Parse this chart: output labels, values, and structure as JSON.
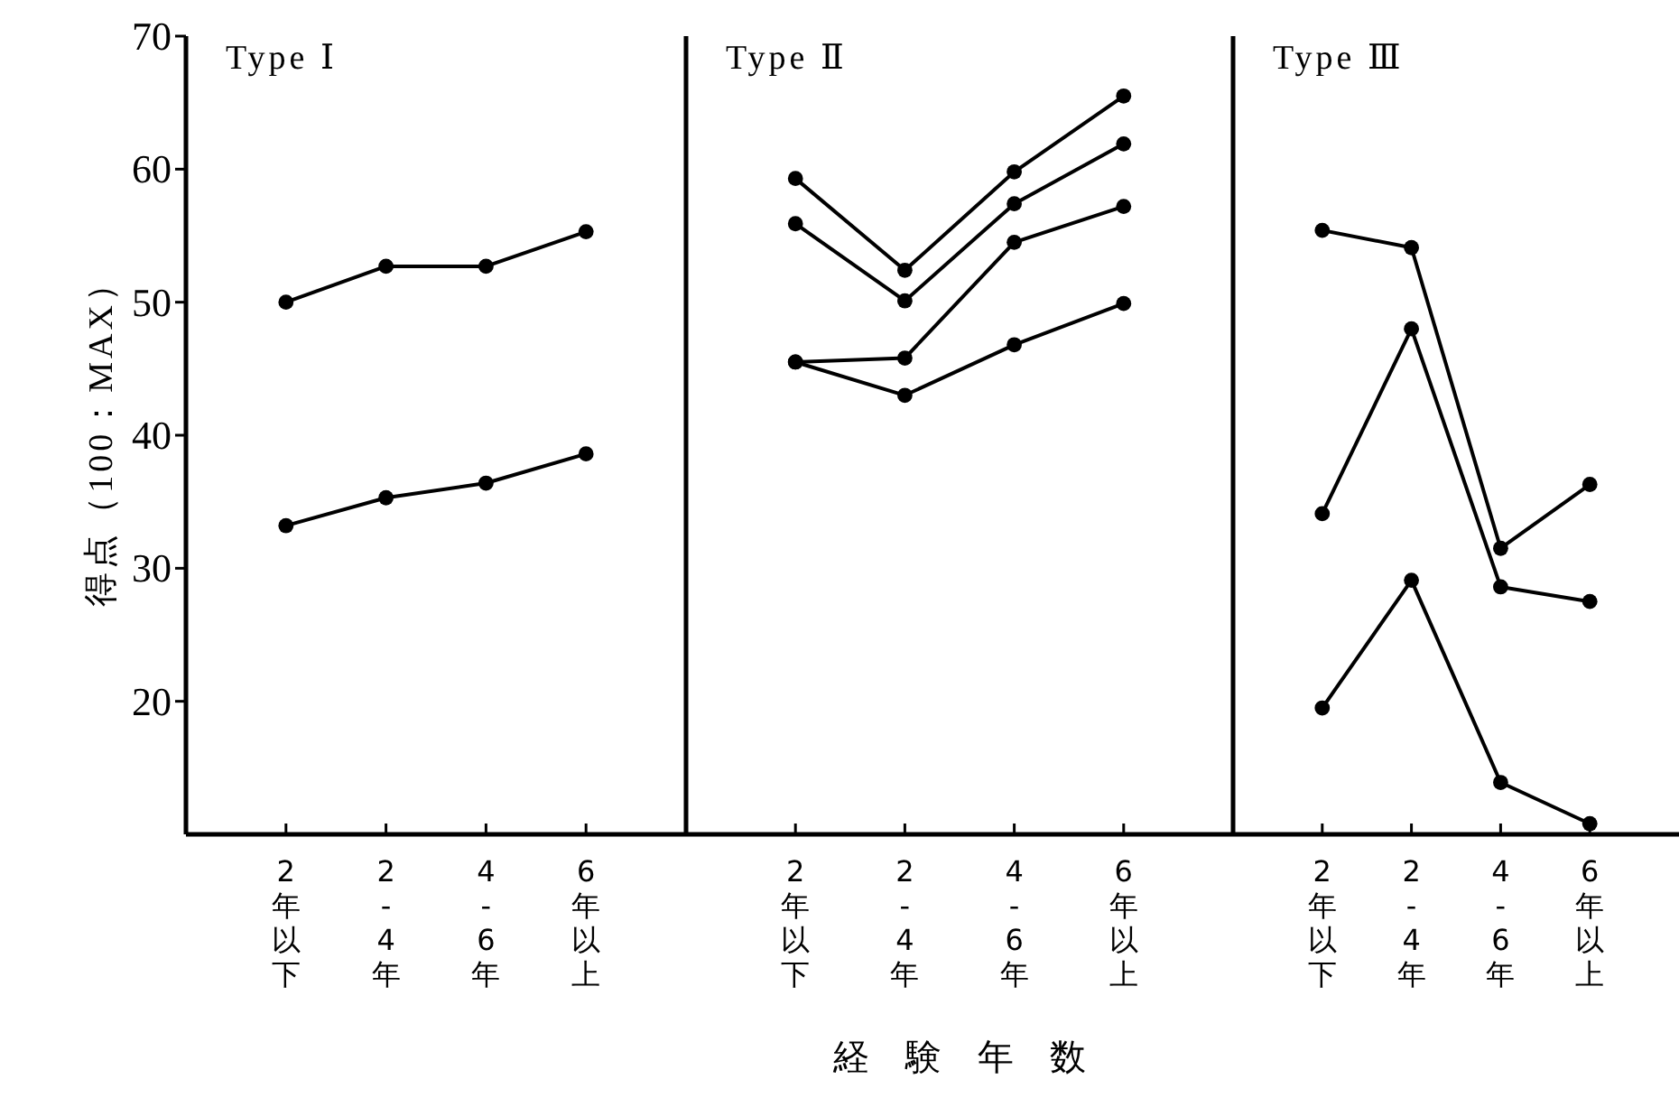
{
  "chart_data": [
    {
      "type": "line",
      "title": "Type Ⅰ",
      "ylabel": "得点（100：MAX）",
      "categories": [
        "2年以下",
        "2-4年",
        "4-6年",
        "6年以上"
      ],
      "marker": "circle",
      "ylim": [
        10,
        70
      ],
      "yticks": [
        20,
        30,
        40,
        50,
        60,
        70
      ],
      "series": [
        {
          "color": "#000000",
          "values": [
            50.0,
            52.7,
            52.7,
            55.3
          ]
        },
        {
          "color": "#000000",
          "values": [
            33.2,
            35.3,
            36.4,
            38.6
          ]
        }
      ]
    },
    {
      "type": "line",
      "title": "Type Ⅱ",
      "xlabel": "経　験　年　数",
      "categories": [
        "2年以下",
        "2-4年",
        "4-6年",
        "6年以上"
      ],
      "marker": "circle",
      "ylim": [
        10,
        70
      ],
      "tick_labels": "x",
      "series": [
        {
          "color": "#000000",
          "values": [
            59.3,
            52.4,
            59.8,
            65.5
          ]
        },
        {
          "color": "#000000",
          "values": [
            55.9,
            50.1,
            57.4,
            61.9
          ]
        },
        {
          "color": "#000000",
          "values": [
            45.5,
            45.8,
            54.5,
            57.2
          ]
        },
        {
          "color": "#000000",
          "values": [
            45.5,
            43.0,
            46.8,
            49.9
          ]
        }
      ]
    },
    {
      "type": "line",
      "title": "Type Ⅲ",
      "categories": [
        "2年以下",
        "2-4年",
        "4-6年",
        "6年以上"
      ],
      "marker": "circle",
      "ylim": [
        10,
        70
      ],
      "tick_labels": "x",
      "series": [
        {
          "color": "#000000",
          "values": [
            55.4,
            54.1,
            31.5,
            36.3
          ]
        },
        {
          "color": "#000000",
          "values": [
            34.1,
            48.0,
            28.6,
            27.5
          ]
        },
        {
          "color": "#000000",
          "values": [
            19.5,
            29.1,
            13.9,
            10.8
          ]
        }
      ]
    }
  ]
}
